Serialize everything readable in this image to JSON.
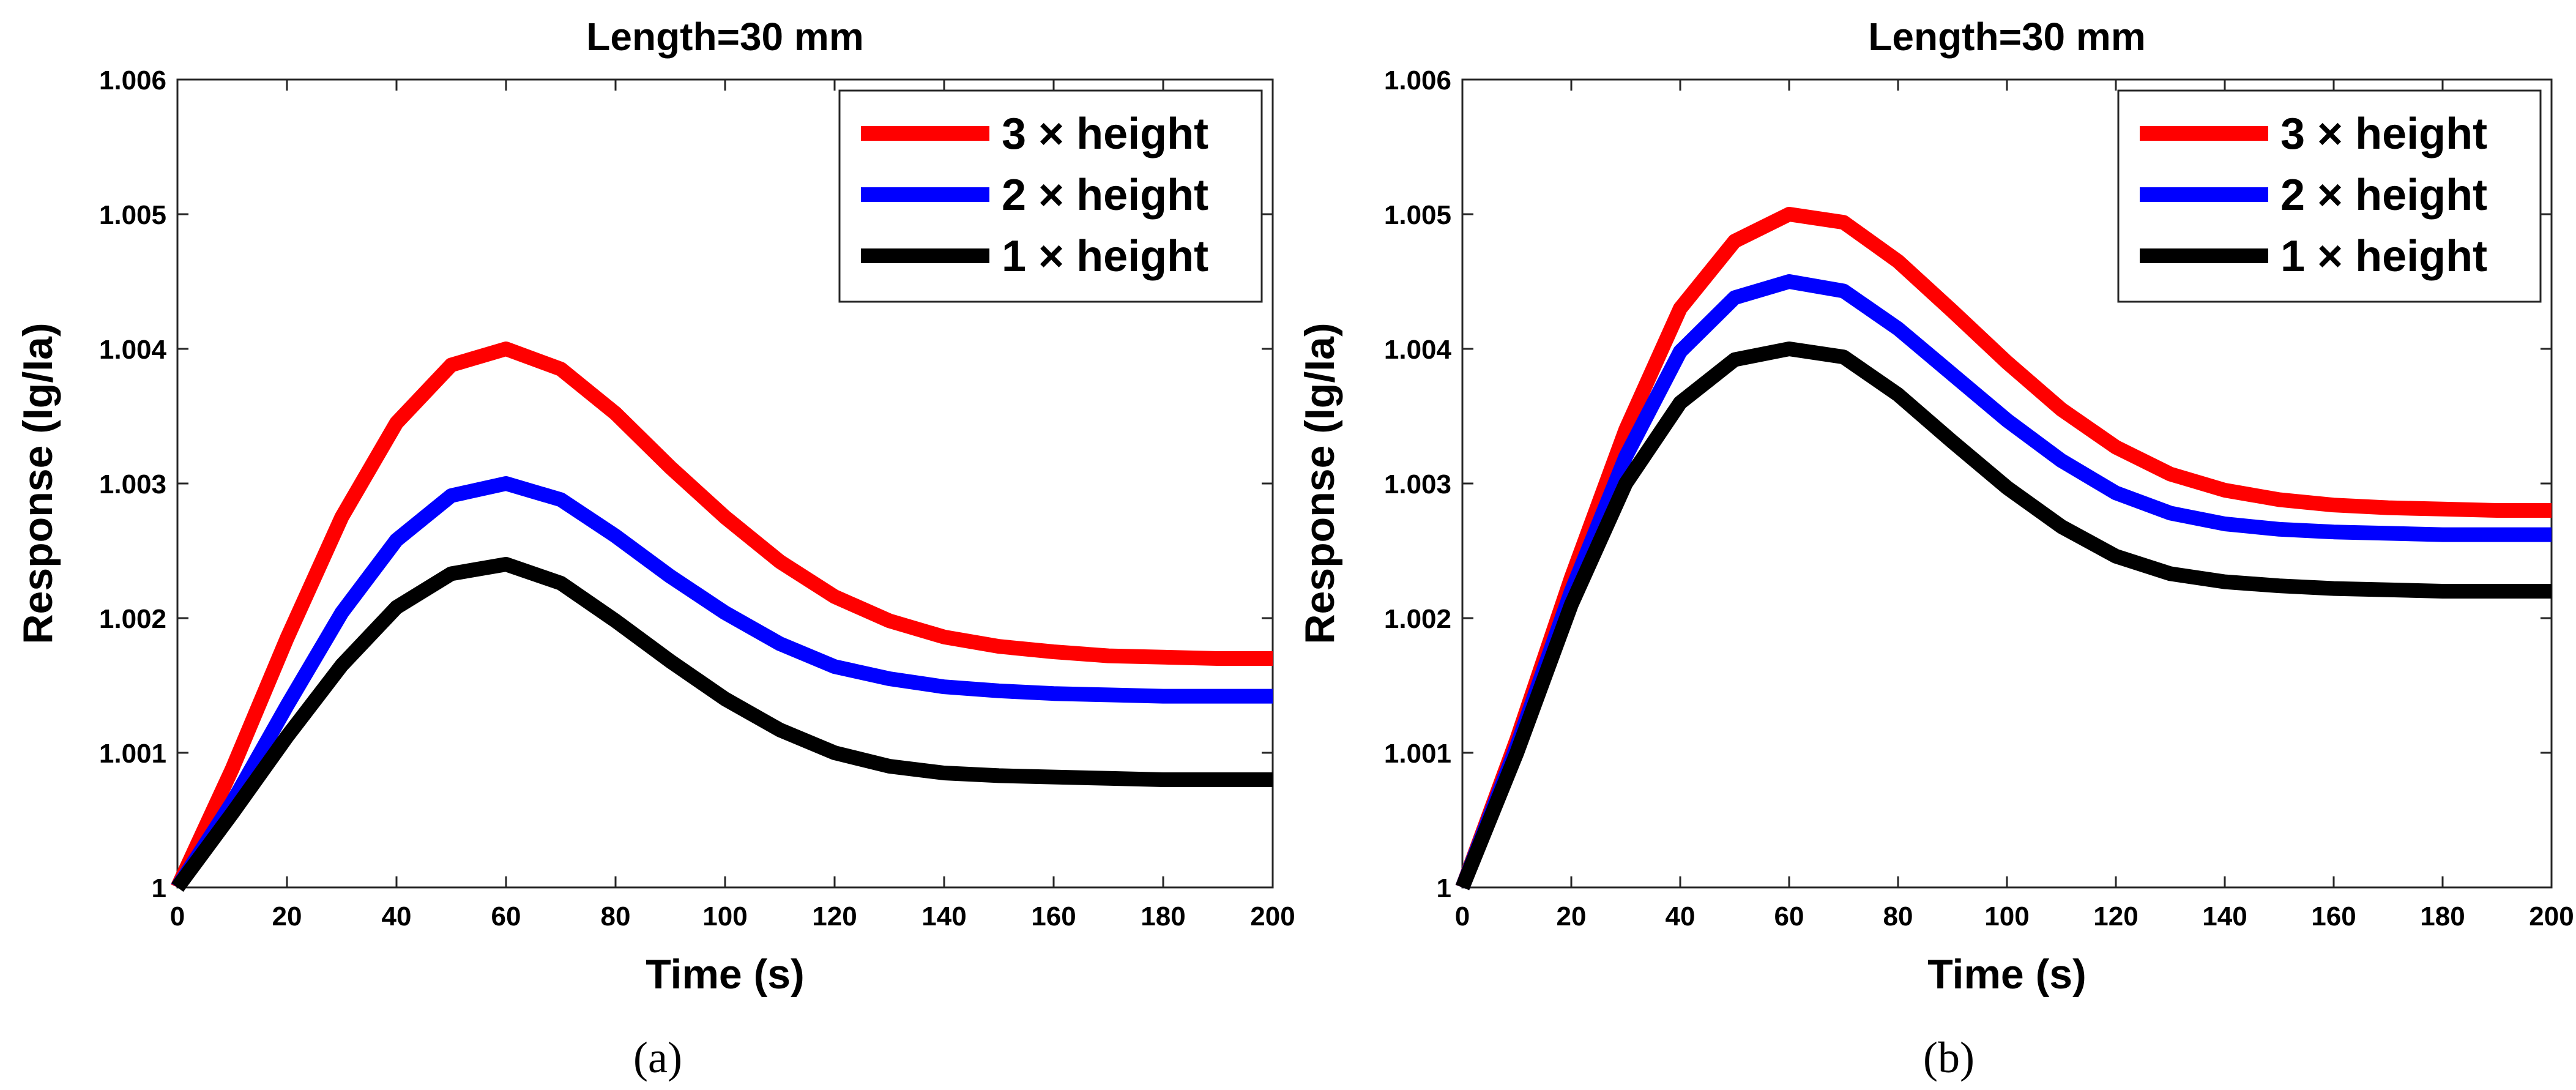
{
  "figure": {
    "captions": [
      "(a)",
      "(b)"
    ]
  },
  "chart_data": [
    {
      "id": "a",
      "type": "line",
      "title": "Length=30 mm",
      "xlabel": "Time (s)",
      "ylabel": "Response (Ig/Ia)",
      "xlim": [
        0,
        200
      ],
      "ylim": [
        1,
        1.006
      ],
      "xticks": [
        0,
        20,
        40,
        60,
        80,
        100,
        120,
        140,
        160,
        180,
        200
      ],
      "yticks": [
        1,
        1.001,
        1.002,
        1.003,
        1.004,
        1.005,
        1.006
      ],
      "ytick_labels": [
        "1",
        "1.001",
        "1.002",
        "1.003",
        "1.004",
        "1.005",
        "1.006"
      ],
      "grid": false,
      "legend_position": "top-right",
      "series": [
        {
          "name": "3 × height",
          "color": "#ff0000",
          "x": [
            0,
            10,
            20,
            30,
            40,
            50,
            60,
            70,
            80,
            90,
            100,
            110,
            120,
            130,
            140,
            150,
            160,
            170,
            180,
            190,
            200
          ],
          "y": [
            1.0,
            1.00088,
            1.00185,
            1.00275,
            1.00345,
            1.00388,
            1.004,
            1.00385,
            1.00352,
            1.00312,
            1.00275,
            1.00242,
            1.00216,
            1.00198,
            1.00186,
            1.00179,
            1.00175,
            1.00172,
            1.00171,
            1.0017,
            1.0017
          ]
        },
        {
          "name": "2 × height",
          "color": "#0000ff",
          "x": [
            0,
            10,
            20,
            30,
            40,
            50,
            60,
            70,
            80,
            90,
            100,
            110,
            120,
            130,
            140,
            150,
            160,
            170,
            180,
            190,
            200
          ],
          "y": [
            1.0,
            1.00063,
            1.00135,
            1.00204,
            1.00258,
            1.00291,
            1.003,
            1.00288,
            1.00261,
            1.00231,
            1.00204,
            1.00181,
            1.00164,
            1.00155,
            1.00149,
            1.00146,
            1.00144,
            1.00143,
            1.00142,
            1.00142,
            1.00142
          ]
        },
        {
          "name": "1 × height",
          "color": "#000000",
          "x": [
            0,
            10,
            20,
            30,
            40,
            50,
            60,
            70,
            80,
            90,
            100,
            110,
            120,
            130,
            140,
            150,
            160,
            170,
            180,
            190,
            200
          ],
          "y": [
            1.0,
            1.00055,
            1.00112,
            1.00165,
            1.00208,
            1.00233,
            1.0024,
            1.00226,
            1.00198,
            1.00168,
            1.0014,
            1.00117,
            1.001,
            1.0009,
            1.00085,
            1.00083,
            1.00082,
            1.00081,
            1.0008,
            1.0008,
            1.0008
          ]
        }
      ]
    },
    {
      "id": "b",
      "type": "line",
      "title": "Length=30 mm",
      "xlabel": "Time (s)",
      "ylabel": "Response (Ig/Ia)",
      "xlim": [
        0,
        200
      ],
      "ylim": [
        1,
        1.006
      ],
      "xticks": [
        0,
        20,
        40,
        60,
        80,
        100,
        120,
        140,
        160,
        180,
        200
      ],
      "yticks": [
        1,
        1.001,
        1.002,
        1.003,
        1.004,
        1.005,
        1.006
      ],
      "ytick_labels": [
        "1",
        "1.001",
        "1.002",
        "1.003",
        "1.004",
        "1.005",
        "1.006"
      ],
      "grid": false,
      "legend_position": "top-right",
      "series": [
        {
          "name": "3 × height",
          "color": "#ff0000",
          "x": [
            0,
            10,
            20,
            30,
            40,
            50,
            60,
            70,
            80,
            90,
            100,
            110,
            120,
            130,
            140,
            150,
            160,
            170,
            180,
            190,
            200
          ],
          "y": [
            1.0,
            1.0011,
            1.0023,
            1.0034,
            1.0043,
            1.0048,
            1.005,
            1.00494,
            1.00465,
            1.00428,
            1.0039,
            1.00355,
            1.00327,
            1.00307,
            1.00295,
            1.00288,
            1.00284,
            1.00282,
            1.00281,
            1.0028,
            1.0028
          ]
        },
        {
          "name": "2 × height",
          "color": "#0000ff",
          "x": [
            0,
            10,
            20,
            30,
            40,
            50,
            60,
            70,
            80,
            90,
            100,
            110,
            120,
            130,
            140,
            150,
            160,
            170,
            180,
            190,
            200
          ],
          "y": [
            1.0,
            1.00105,
            1.0022,
            1.0032,
            1.00398,
            1.00438,
            1.0045,
            1.00443,
            1.00415,
            1.00381,
            1.00347,
            1.00317,
            1.00293,
            1.00278,
            1.0027,
            1.00266,
            1.00264,
            1.00263,
            1.00262,
            1.00262,
            1.00262
          ]
        },
        {
          "name": "1 × height",
          "color": "#000000",
          "x": [
            0,
            10,
            20,
            30,
            40,
            50,
            60,
            70,
            80,
            90,
            100,
            110,
            120,
            130,
            140,
            150,
            160,
            170,
            180,
            190,
            200
          ],
          "y": [
            1.0,
            1.001,
            1.0021,
            1.003,
            1.0036,
            1.00392,
            1.004,
            1.00394,
            1.00366,
            1.00331,
            1.00297,
            1.00268,
            1.00246,
            1.00233,
            1.00227,
            1.00224,
            1.00222,
            1.00221,
            1.0022,
            1.0022,
            1.0022
          ]
        }
      ]
    }
  ]
}
